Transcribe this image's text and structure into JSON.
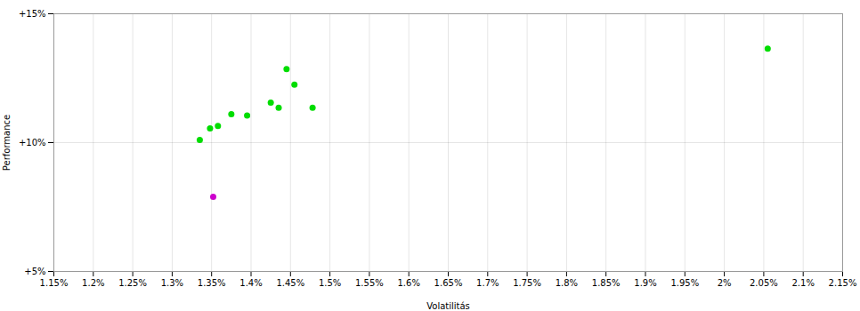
{
  "chart_data": {
    "type": "scatter",
    "xlabel": "Volatilitás",
    "ylabel": "Performance",
    "series": [
      {
        "color": "#00dd00",
        "x": [
          1.335,
          1.348,
          1.358,
          1.375,
          1.395,
          1.425,
          1.435,
          1.445,
          1.455,
          1.478,
          2.055
        ],
        "values": [
          10.1,
          10.55,
          10.65,
          11.1,
          11.05,
          11.55,
          11.35,
          12.85,
          12.25,
          11.35,
          13.65
        ]
      },
      {
        "color": "#cc00cc",
        "x": [
          1.352
        ],
        "values": [
          7.9
        ]
      }
    ],
    "xlim": [
      1.15,
      2.15
    ],
    "ylim": [
      5.0,
      15.0
    ],
    "xticks": [
      {
        "value": 1.15,
        "label": "1.15%"
      },
      {
        "value": 1.2,
        "label": "1.2%"
      },
      {
        "value": 1.25,
        "label": "1.25%"
      },
      {
        "value": 1.3,
        "label": "1.3%"
      },
      {
        "value": 1.35,
        "label": "1.35%"
      },
      {
        "value": 1.4,
        "label": "1.4%"
      },
      {
        "value": 1.45,
        "label": "1.45%"
      },
      {
        "value": 1.5,
        "label": "1.5%"
      },
      {
        "value": 1.55,
        "label": "1.55%"
      },
      {
        "value": 1.6,
        "label": "1.6%"
      },
      {
        "value": 1.65,
        "label": "1.65%"
      },
      {
        "value": 1.7,
        "label": "1.7%"
      },
      {
        "value": 1.75,
        "label": "1.75%"
      },
      {
        "value": 1.8,
        "label": "1.8%"
      },
      {
        "value": 1.85,
        "label": "1.85%"
      },
      {
        "value": 1.9,
        "label": "1.9%"
      },
      {
        "value": 1.95,
        "label": "1.95%"
      },
      {
        "value": 2.0,
        "label": "2%"
      },
      {
        "value": 2.05,
        "label": "2.05%"
      },
      {
        "value": 2.1,
        "label": "2.1%"
      },
      {
        "value": 2.15,
        "label": "2.15%"
      }
    ],
    "yticks": [
      {
        "value": 5.0,
        "label": "+5%"
      },
      {
        "value": 10.0,
        "label": "+10%"
      },
      {
        "value": 15.0,
        "label": "+15%"
      }
    ],
    "grid": true
  }
}
